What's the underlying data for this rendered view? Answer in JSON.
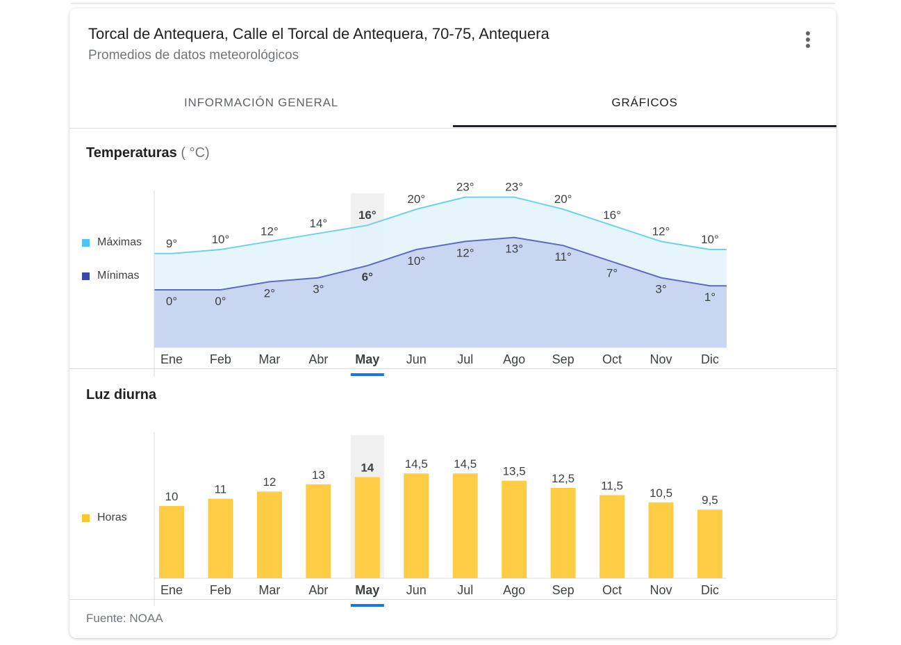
{
  "header": {
    "title": "Torcal de Antequera, Calle el Torcal de Antequera, 70-75, Antequera",
    "subtitle": "Promedios de datos meteorológicos"
  },
  "tabs": [
    {
      "label": "INFORMACIÓN GENERAL",
      "active": false
    },
    {
      "label": "GRÁFICOS",
      "active": true
    }
  ],
  "temperature": {
    "title": "Temperaturas",
    "unit": "( °C)",
    "legend_max": "Máximas",
    "legend_min": "Mínimas"
  },
  "daylight": {
    "title": "Luz diurna",
    "legend": "Horas"
  },
  "footer": {
    "source": "Fuente: NOAA"
  },
  "colors": {
    "max_line": "#6fd0f0",
    "max_fill": "#e2f3fc",
    "min_line": "#5c6bc0",
    "min_fill": "#c5d3ef",
    "bars": "#ffcd45",
    "selected": "#1a73e8"
  },
  "chart_data": [
    {
      "type": "area",
      "title": "Temperaturas",
      "categories": [
        "Ene",
        "Feb",
        "Mar",
        "Abr",
        "May",
        "Jun",
        "Jul",
        "Ago",
        "Sep",
        "Oct",
        "Nov",
        "Dic"
      ],
      "selected": "May",
      "series": [
        {
          "name": "Máximas",
          "values": [
            9,
            10,
            12,
            14,
            16,
            20,
            23,
            23,
            20,
            16,
            12,
            10
          ],
          "labels": [
            "9°",
            "10°",
            "12°",
            "14°",
            "16°",
            "20°",
            "23°",
            "23°",
            "20°",
            "16°",
            "12°",
            "10°"
          ]
        },
        {
          "name": "Mínimas",
          "values": [
            0,
            0,
            2,
            3,
            6,
            10,
            12,
            13,
            11,
            7,
            3,
            1
          ],
          "labels": [
            "0°",
            "0°",
            "2°",
            "3°",
            "6°",
            "10°",
            "12°",
            "13°",
            "11°",
            "7°",
            "3°",
            "1°"
          ]
        }
      ],
      "ylim": [
        -5,
        30
      ]
    },
    {
      "type": "bar",
      "title": "Luz diurna",
      "categories": [
        "Ene",
        "Feb",
        "Mar",
        "Abr",
        "May",
        "Jun",
        "Jul",
        "Ago",
        "Sep",
        "Oct",
        "Nov",
        "Dic"
      ],
      "selected": "May",
      "series": [
        {
          "name": "Horas",
          "values": [
            10,
            11,
            12,
            13,
            14,
            14.5,
            14.5,
            13.5,
            12.5,
            11.5,
            10.5,
            9.5
          ],
          "labels": [
            "10",
            "11",
            "12",
            "13",
            "14",
            "14,5",
            "14,5",
            "13,5",
            "12,5",
            "11,5",
            "10,5",
            "9,5"
          ]
        }
      ],
      "ylim": [
        0,
        20
      ]
    }
  ]
}
